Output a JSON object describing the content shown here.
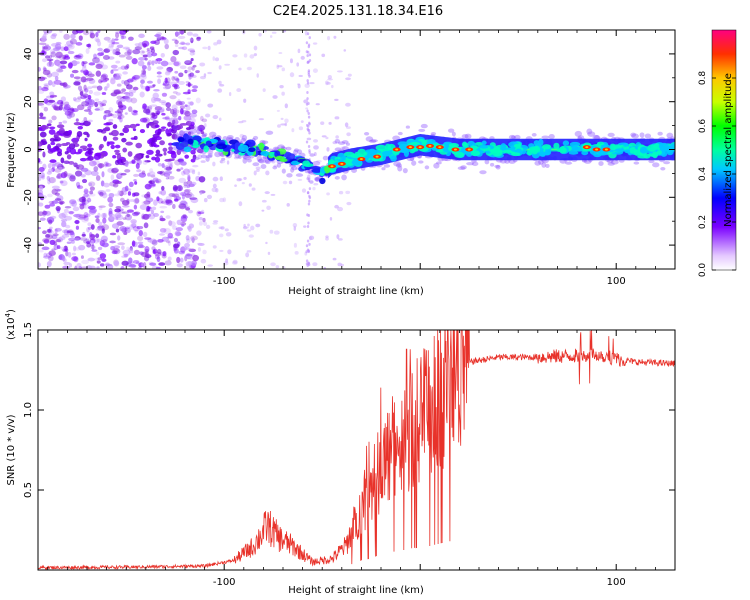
{
  "title": "C2E4.2025.131.18.34.E16",
  "chart_data": [
    {
      "type": "heatmap",
      "xlabel": "Height of straight line (km)",
      "ylabel": "Frequency (Hz)",
      "xlim": [
        -195,
        130
      ],
      "ylim": [
        -50,
        50
      ],
      "xticks": [
        -100,
        0,
        100
      ],
      "xtick_labels": [
        "-100",
        "",
        "100"
      ],
      "yticks": [
        -40,
        -20,
        0,
        20,
        40
      ],
      "ytick_labels": [
        "-40",
        "-20",
        "0",
        "20",
        "40"
      ],
      "ridge": {
        "x": [
          -125,
          -100,
          -80,
          -65,
          -55,
          -50,
          -45,
          -35,
          -20,
          -10,
          0,
          20,
          50,
          80,
          100,
          130
        ],
        "y": [
          3,
          2,
          -1,
          -4,
          -7,
          -10,
          -6,
          -4,
          -2,
          0,
          2,
          0,
          0,
          0,
          0,
          0
        ]
      },
      "colorbar": {
        "label": "Normalized spectral amplitude",
        "range": [
          0,
          1
        ],
        "ticks": [
          0.0,
          0.2,
          0.4,
          0.6,
          0.8
        ],
        "tick_labels": [
          "0.0",
          "0.2",
          "0.4",
          "0.6",
          "0.8"
        ]
      }
    },
    {
      "type": "line",
      "xlabel": "Height of straight line (km)",
      "ylabel": "SNR (10 * v/v)",
      "multiplier_label": "(x10",
      "multiplier_exp": "4",
      "xlim": [
        -195,
        130
      ],
      "ylim": [
        0,
        15000
      ],
      "xticks": [
        -100,
        0,
        100
      ],
      "xtick_labels": [
        "-100",
        "",
        "100"
      ],
      "yticks": [
        5000,
        10000,
        15000
      ],
      "ytick_labels": [
        "0.5",
        "1.0",
        "1.5"
      ],
      "series": [
        {
          "name": "SNR",
          "color": "#e8322a",
          "envelope_x": [
            -195,
            -150,
            -110,
            -95,
            -85,
            -78,
            -72,
            -65,
            -55,
            -45,
            -38,
            -30,
            -25,
            -20,
            -15,
            -10,
            -5,
            0,
            5,
            10,
            15,
            25,
            40,
            60,
            80,
            90,
            100,
            110,
            130
          ],
          "envelope_y": [
            150,
            180,
            250,
            600,
            1500,
            2800,
            2000,
            1500,
            500,
            700,
            1500,
            4000,
            5000,
            6500,
            7500,
            8000,
            9000,
            9500,
            10000,
            11000,
            12000,
            13000,
            13300,
            13300,
            13400,
            13500,
            13200,
            13000,
            12900
          ]
        }
      ]
    }
  ]
}
